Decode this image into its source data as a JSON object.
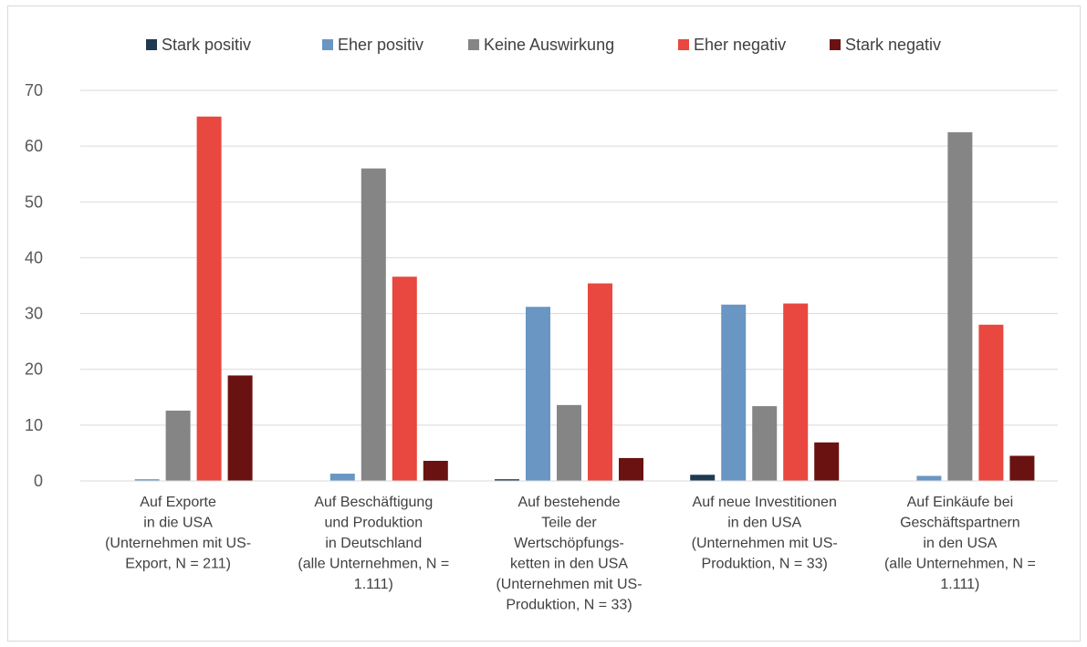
{
  "chart_data": {
    "type": "bar",
    "title": "",
    "xlabel": "",
    "ylabel": "",
    "ylim": [
      0,
      70
    ],
    "yticks": [
      0,
      10,
      20,
      30,
      40,
      50,
      60,
      70
    ],
    "grid": true,
    "legend_position": "top",
    "categories": [
      [
        "Auf Exporte",
        "in die USA",
        "(Unternehmen mit US-",
        "Export, N = 211)"
      ],
      [
        "Auf Beschäftigung",
        "und Produktion",
        "in Deutschland",
        "(alle Unternehmen, N =",
        "1.111)"
      ],
      [
        "Auf bestehende",
        "Teile der",
        "Wertschöpfungs-",
        "ketten in den USA",
        "(Unternehmen mit US-",
        "Produktion, N = 33)"
      ],
      [
        "Auf neue Investitionen",
        "in den USA",
        "(Unternehmen mit US-",
        "Produktion, N = 33)"
      ],
      [
        "Auf Einkäufe bei",
        "Geschäftspartnern",
        "in den USA",
        "(alle Unternehmen, N =",
        "1.111)"
      ]
    ],
    "series": [
      {
        "name": "Stark positiv",
        "color": "#203a52",
        "values": [
          0,
          0,
          0.3,
          1.1,
          0
        ]
      },
      {
        "name": "Eher positiv",
        "color": "#6a96c3",
        "values": [
          0.3,
          1.3,
          31.2,
          31.6,
          0.9
        ]
      },
      {
        "name": "Keine Auswirkung",
        "color": "#858585",
        "values": [
          12.6,
          56.0,
          13.6,
          13.4,
          62.5
        ]
      },
      {
        "name": "Eher negativ",
        "color": "#e8483f",
        "values": [
          65.3,
          36.6,
          35.4,
          31.8,
          28.0
        ]
      },
      {
        "name": "Stark negativ",
        "color": "#6a1211",
        "values": [
          18.9,
          3.6,
          4.1,
          6.9,
          4.5
        ]
      }
    ]
  }
}
